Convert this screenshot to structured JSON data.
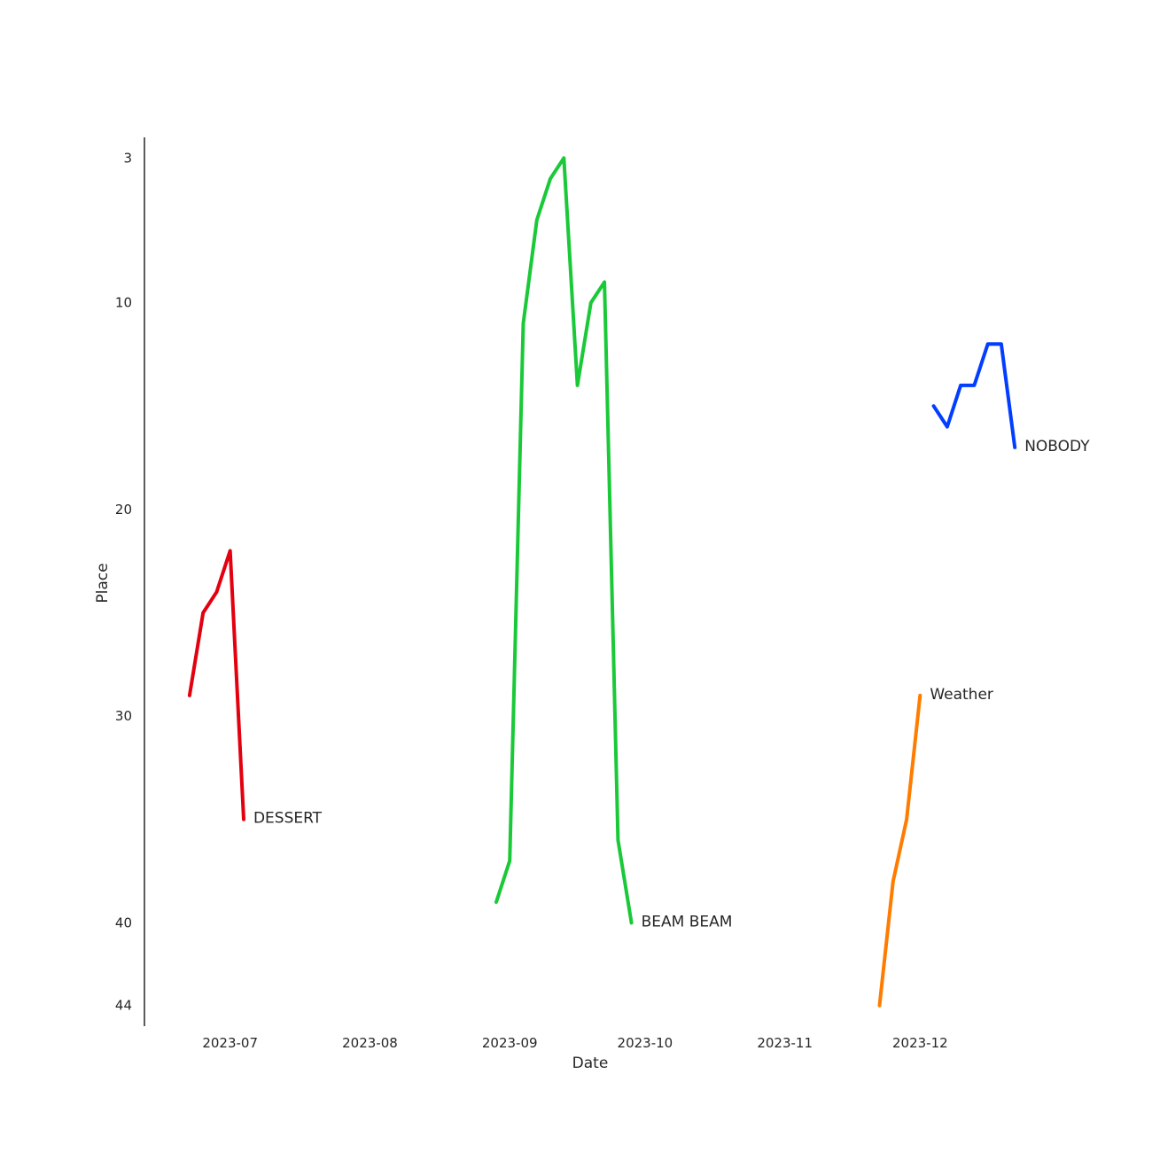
{
  "chart_data": {
    "type": "line",
    "title": "",
    "xlabel": "Date",
    "ylabel": "Place",
    "x_axis": {
      "type": "date",
      "range": [
        "2023-06-12",
        "2024-01-11"
      ],
      "ticks": [
        {
          "date": "2023-07-01",
          "label": "2023-07"
        },
        {
          "date": "2023-08-01",
          "label": "2023-08"
        },
        {
          "date": "2023-09-01",
          "label": "2023-09"
        },
        {
          "date": "2023-10-01",
          "label": "2023-10"
        },
        {
          "date": "2023-11-01",
          "label": "2023-11"
        },
        {
          "date": "2023-12-01",
          "label": "2023-12"
        }
      ]
    },
    "y_axis": {
      "range": [
        2,
        45
      ],
      "inverted": true,
      "ticks": [
        3,
        10,
        20,
        30,
        40,
        44
      ]
    },
    "grid": false,
    "legend": "none",
    "series": [
      {
        "name": "DESSERT",
        "color": "#e3000f",
        "x": [
          "2023-06-22",
          "2023-06-25",
          "2023-06-28",
          "2023-07-01",
          "2023-07-04"
        ],
        "y": [
          29,
          25,
          24,
          22,
          35
        ]
      },
      {
        "name": "BEAM BEAM",
        "color": "#1ac938",
        "x": [
          "2023-08-29",
          "2023-09-01",
          "2023-09-04",
          "2023-09-07",
          "2023-09-10",
          "2023-09-13",
          "2023-09-16",
          "2023-09-19",
          "2023-09-22",
          "2023-09-25",
          "2023-09-28"
        ],
        "y": [
          39,
          37,
          11,
          6,
          4,
          3,
          14,
          10,
          9,
          36,
          40
        ]
      },
      {
        "name": "Weather",
        "color": "#ff7c00",
        "x": [
          "2023-11-22",
          "2023-11-25",
          "2023-11-28",
          "2023-12-01"
        ],
        "y": [
          44,
          38,
          35,
          29
        ]
      },
      {
        "name": "NOBODY",
        "color": "#023eff",
        "x": [
          "2023-12-04",
          "2023-12-07",
          "2023-12-10",
          "2023-12-13",
          "2023-12-16",
          "2023-12-19",
          "2023-12-22"
        ],
        "y": [
          15,
          16,
          14,
          14,
          12,
          12,
          17
        ]
      }
    ]
  }
}
